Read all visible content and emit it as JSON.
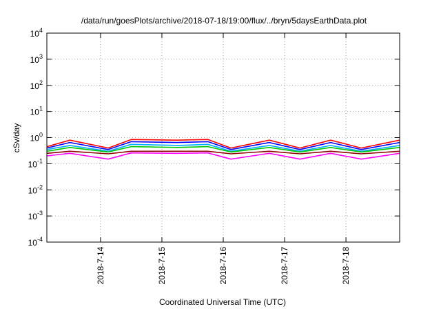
{
  "chart_data": {
    "type": "line",
    "title": "/data/run/goesPlots/archive/2018-07-18/19:00/flux/../bryn/5daysEarthData.plot",
    "xlabel": "Coordinated Universal Time (UTC)",
    "ylabel": "cSv/day",
    "yscale": "log",
    "ylim": [
      0.0001,
      10000
    ],
    "xlim": [
      "2018-07-13T03:00",
      "2018-07-18T21:00"
    ],
    "y_ticks": [
      {
        "base": "10",
        "exp": "-4",
        "value": 0.0001
      },
      {
        "base": "10",
        "exp": "-3",
        "value": 0.001
      },
      {
        "base": "10",
        "exp": "-2",
        "value": 0.01
      },
      {
        "base": "10",
        "exp": "-1",
        "value": 0.1
      },
      {
        "base": "10",
        "exp": "0",
        "value": 1
      },
      {
        "base": "10",
        "exp": "1",
        "value": 10
      },
      {
        "base": "10",
        "exp": "2",
        "value": 100
      },
      {
        "base": "10",
        "exp": "3",
        "value": 1000
      },
      {
        "base": "10",
        "exp": "4",
        "value": 10000
      }
    ],
    "x_ticks": [
      {
        "label": "2018-7-14",
        "value": "2018-07-14T00:00"
      },
      {
        "label": "2018-7-15",
        "value": "2018-07-15T00:00"
      },
      {
        "label": "2018-7-16",
        "value": "2018-07-16T00:00"
      },
      {
        "label": "2018-7-17",
        "value": "2018-07-17T00:00"
      },
      {
        "label": "2018-7-18",
        "value": "2018-07-18T00:00"
      }
    ],
    "grid": true,
    "legend": "none",
    "series": [
      {
        "color": "#ff0000",
        "x": [
          "2018-07-13T03:00",
          "2018-07-13T12:00",
          "2018-07-14T03:00",
          "2018-07-14T12:00",
          "2018-07-15T06:00",
          "2018-07-15T18:00",
          "2018-07-16T03:00",
          "2018-07-16T18:00",
          "2018-07-17T06:00",
          "2018-07-17T18:00",
          "2018-07-18T06:00",
          "2018-07-18T21:00"
        ],
        "values": [
          0.45,
          0.8,
          0.4,
          0.85,
          0.8,
          0.85,
          0.4,
          0.8,
          0.4,
          0.8,
          0.4,
          0.8
        ]
      },
      {
        "color": "#0000ff",
        "x": [
          "2018-07-13T03:00",
          "2018-07-13T12:00",
          "2018-07-14T03:00",
          "2018-07-14T12:00",
          "2018-07-15T06:00",
          "2018-07-15T18:00",
          "2018-07-16T03:00",
          "2018-07-16T18:00",
          "2018-07-17T06:00",
          "2018-07-17T18:00",
          "2018-07-18T06:00",
          "2018-07-18T21:00"
        ],
        "values": [
          0.4,
          0.65,
          0.35,
          0.7,
          0.65,
          0.7,
          0.35,
          0.65,
          0.35,
          0.65,
          0.35,
          0.65
        ]
      },
      {
        "color": "#00aaff",
        "x": [
          "2018-07-13T03:00",
          "2018-07-13T12:00",
          "2018-07-14T03:00",
          "2018-07-14T12:00",
          "2018-07-15T06:00",
          "2018-07-15T18:00",
          "2018-07-16T03:00",
          "2018-07-16T18:00",
          "2018-07-17T06:00",
          "2018-07-17T18:00",
          "2018-07-18T06:00",
          "2018-07-18T21:00"
        ],
        "values": [
          0.35,
          0.5,
          0.3,
          0.55,
          0.5,
          0.55,
          0.3,
          0.5,
          0.3,
          0.5,
          0.3,
          0.5
        ]
      },
      {
        "color": "#00c800",
        "x": [
          "2018-07-13T03:00",
          "2018-07-13T12:00",
          "2018-07-14T03:00",
          "2018-07-14T12:00",
          "2018-07-15T06:00",
          "2018-07-15T18:00",
          "2018-07-16T03:00",
          "2018-07-16T18:00",
          "2018-07-17T06:00",
          "2018-07-17T18:00",
          "2018-07-18T06:00",
          "2018-07-18T21:00"
        ],
        "values": [
          0.3,
          0.42,
          0.28,
          0.45,
          0.42,
          0.45,
          0.28,
          0.42,
          0.28,
          0.42,
          0.28,
          0.42
        ]
      },
      {
        "color": "#ff00ff",
        "x": [
          "2018-07-13T03:00",
          "2018-07-13T12:00",
          "2018-07-14T03:00",
          "2018-07-14T12:00",
          "2018-07-15T06:00",
          "2018-07-15T18:00",
          "2018-07-16T03:00",
          "2018-07-16T18:00",
          "2018-07-17T06:00",
          "2018-07-17T18:00",
          "2018-07-18T06:00",
          "2018-07-18T21:00"
        ],
        "values": [
          0.2,
          0.25,
          0.15,
          0.26,
          0.25,
          0.26,
          0.15,
          0.25,
          0.15,
          0.25,
          0.15,
          0.25
        ]
      },
      {
        "color": "#8b0000",
        "x": [
          "2018-07-13T03:00",
          "2018-07-13T12:00",
          "2018-07-14T03:00",
          "2018-07-14T12:00",
          "2018-07-15T06:00",
          "2018-07-15T18:00",
          "2018-07-16T03:00",
          "2018-07-16T18:00",
          "2018-07-17T06:00",
          "2018-07-17T18:00",
          "2018-07-18T06:00",
          "2018-07-18T21:00"
        ],
        "values": [
          0.25,
          0.3,
          0.24,
          0.3,
          0.3,
          0.3,
          0.24,
          0.3,
          0.24,
          0.3,
          0.24,
          0.3
        ]
      }
    ]
  }
}
